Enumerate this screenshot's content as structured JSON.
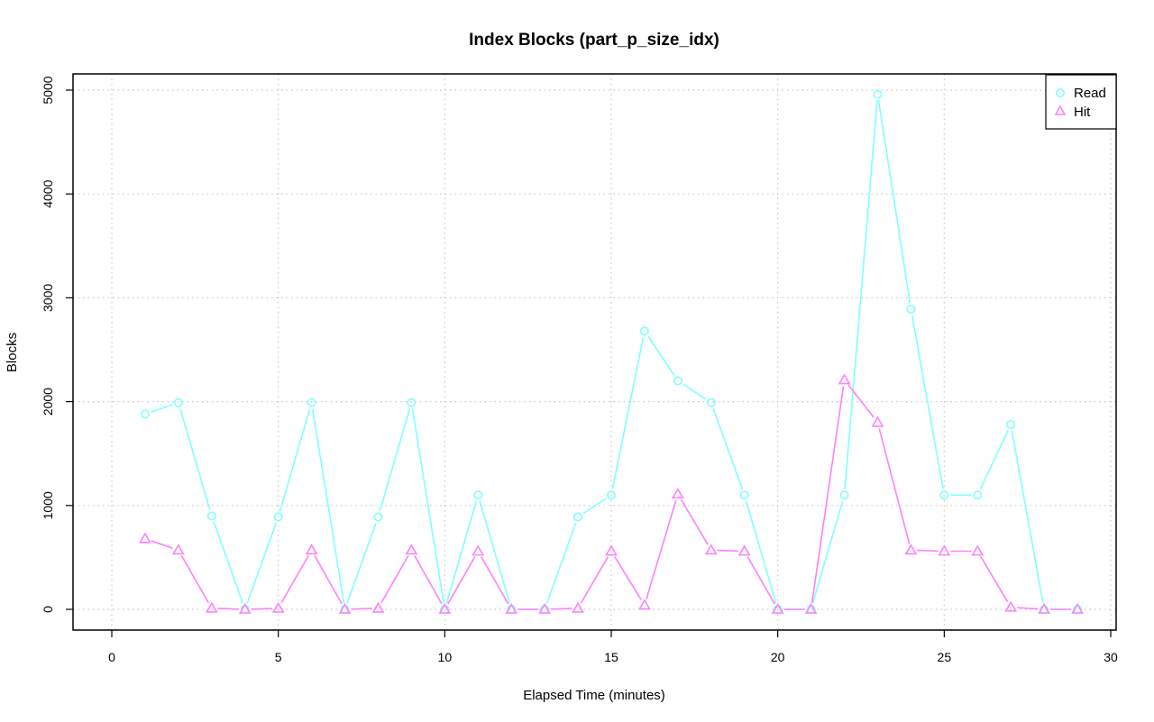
{
  "chart_data": {
    "type": "line",
    "title": "Index Blocks (part_p_size_idx)",
    "xlabel": "Elapsed Time (minutes)",
    "ylabel": "Blocks",
    "xlim": [
      0,
      30
    ],
    "ylim": [
      0,
      5000
    ],
    "x_ticks": [
      0,
      5,
      10,
      15,
      20,
      25,
      30
    ],
    "y_ticks": [
      0,
      1000,
      2000,
      3000,
      4000,
      5000
    ],
    "grid": true,
    "legend_position": "top-right",
    "x": [
      1,
      2,
      3,
      4,
      5,
      6,
      7,
      8,
      9,
      10,
      11,
      12,
      13,
      14,
      15,
      16,
      17,
      18,
      19,
      20,
      21,
      22,
      23,
      24,
      25,
      26,
      27,
      28,
      29
    ],
    "series": [
      {
        "name": "Read",
        "color": "#80ffff",
        "marker": "circle",
        "values": [
          1880,
          1990,
          900,
          0,
          890,
          1990,
          0,
          890,
          1990,
          0,
          1100,
          0,
          0,
          890,
          1100,
          2680,
          2200,
          1990,
          1100,
          0,
          0,
          1100,
          4960,
          2890,
          1100,
          1100,
          1780,
          0,
          0
        ]
      },
      {
        "name": "Hit",
        "color": "#ff80ff",
        "marker": "triangle",
        "values": [
          680,
          570,
          10,
          0,
          10,
          570,
          0,
          10,
          570,
          0,
          560,
          0,
          0,
          10,
          560,
          40,
          1110,
          570,
          560,
          0,
          0,
          2210,
          1800,
          570,
          560,
          560,
          20,
          0,
          0
        ]
      }
    ]
  }
}
